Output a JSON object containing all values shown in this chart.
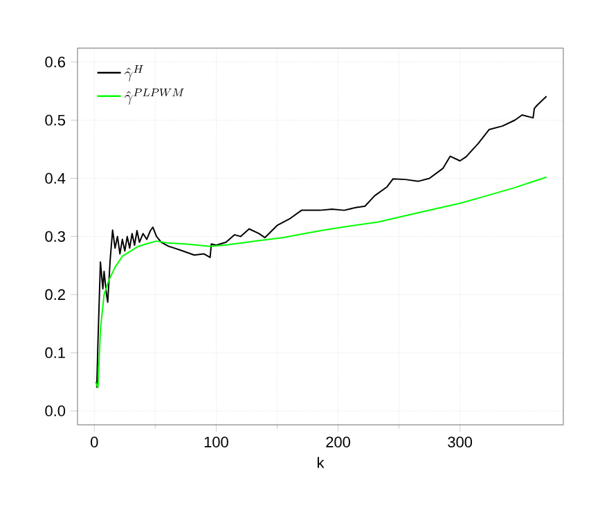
{
  "chart_data": {
    "type": "line",
    "xlabel": "k",
    "xlim": [
      -13.8,
      384.8
    ],
    "ylim": [
      -0.024,
      0.624
    ],
    "xticks": [
      0,
      100,
      200,
      300
    ],
    "yticks": [
      {
        "value": 0,
        "label": "0.0"
      },
      0.1,
      0.2,
      0.3,
      0.4,
      0.5,
      0.6
    ],
    "grid": true,
    "legend": "top left",
    "series": [
      {
        "name": "\\hat{\\gamma}^{H}",
        "color": "#000000",
        "x": [
          2,
          3,
          5,
          7,
          8,
          10,
          11,
          13,
          15,
          17,
          19,
          21,
          23,
          25,
          27,
          29,
          31,
          33,
          35,
          37,
          40,
          43,
          46,
          48,
          51,
          55,
          61,
          70,
          82,
          90,
          95,
          96,
          100,
          108,
          115,
          120,
          127,
          135,
          140,
          150,
          160,
          170,
          173,
          185,
          195,
          205,
          215,
          222,
          230,
          240,
          245,
          255,
          266,
          275,
          286,
          292,
          300,
          305,
          315,
          324,
          335,
          345,
          351,
          360,
          361,
          363,
          371
        ],
        "values": [
          0.04,
          0.12,
          0.256,
          0.21,
          0.24,
          0.2,
          0.187,
          0.26,
          0.311,
          0.28,
          0.3,
          0.27,
          0.295,
          0.275,
          0.3,
          0.28,
          0.305,
          0.285,
          0.31,
          0.29,
          0.305,
          0.295,
          0.31,
          0.316,
          0.3,
          0.29,
          0.283,
          0.277,
          0.268,
          0.27,
          0.264,
          0.287,
          0.285,
          0.29,
          0.303,
          0.3,
          0.313,
          0.305,
          0.298,
          0.319,
          0.33,
          0.345,
          0.345,
          0.345,
          0.347,
          0.345,
          0.35,
          0.352,
          0.37,
          0.385,
          0.399,
          0.398,
          0.395,
          0.4,
          0.417,
          0.438,
          0.43,
          0.437,
          0.46,
          0.484,
          0.49,
          0.5,
          0.509,
          0.504,
          0.52,
          0.525,
          0.541
        ]
      },
      {
        "name": "\\hat{\\gamma}^{PLPWM}",
        "color": "#00ff00",
        "x": [
          1,
          3,
          5,
          8,
          12,
          17,
          23,
          30,
          36,
          44,
          51,
          60,
          75,
          95,
          110,
          125,
          139,
          155,
          170,
          188,
          210,
          233,
          258,
          283,
          300,
          317,
          345,
          371
        ],
        "values": [
          0.05,
          0.04,
          0.14,
          0.2,
          0.225,
          0.247,
          0.266,
          0.275,
          0.283,
          0.288,
          0.292,
          0.289,
          0.287,
          0.283,
          0.286,
          0.29,
          0.294,
          0.298,
          0.304,
          0.311,
          0.318,
          0.325,
          0.337,
          0.349,
          0.357,
          0.367,
          0.384,
          0.402
        ]
      }
    ]
  }
}
